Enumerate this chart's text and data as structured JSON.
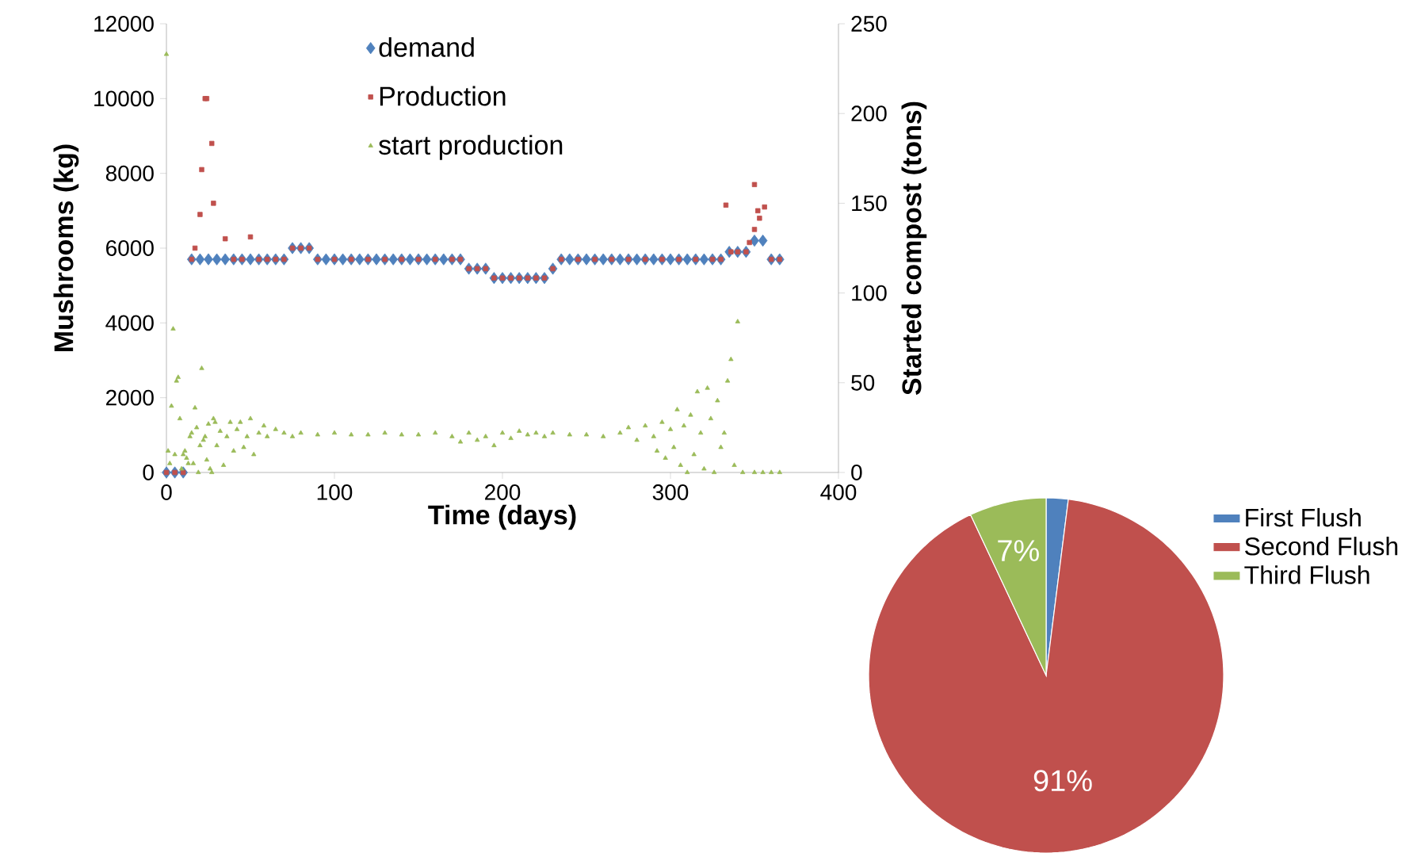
{
  "chart_data": [
    {
      "type": "scatter",
      "xlabel": "Time (days)",
      "ylabel": "Mushrooms (kg)",
      "y2label": "Started compost (tons)",
      "xlim": [
        0,
        400
      ],
      "xticks": [
        0,
        100,
        200,
        300,
        400
      ],
      "ylim": [
        0,
        12000
      ],
      "yticks": [
        0,
        2000,
        4000,
        6000,
        8000,
        10000,
        12000
      ],
      "y2lim": [
        0,
        250
      ],
      "y2ticks": [
        0,
        50,
        100,
        150,
        200,
        250
      ],
      "legend": "top",
      "grid": false,
      "series": [
        {
          "name": "demand",
          "color": "#4f81bd",
          "marker": "diamond",
          "x": [
            0,
            5,
            10,
            15,
            20,
            25,
            30,
            35,
            40,
            45,
            50,
            55,
            60,
            65,
            70,
            75,
            80,
            85,
            90,
            95,
            100,
            105,
            110,
            115,
            120,
            125,
            130,
            135,
            140,
            145,
            150,
            155,
            160,
            165,
            170,
            175,
            180,
            185,
            190,
            195,
            200,
            205,
            210,
            215,
            220,
            225,
            230,
            235,
            240,
            245,
            250,
            255,
            260,
            265,
            270,
            275,
            280,
            285,
            290,
            295,
            300,
            305,
            310,
            315,
            320,
            325,
            330,
            335,
            340,
            345,
            350,
            355,
            360,
            365
          ],
          "values": [
            0,
            0,
            0,
            5700,
            5700,
            5700,
            5700,
            5700,
            5700,
            5700,
            5700,
            5700,
            5700,
            5700,
            5700,
            6000,
            6000,
            6000,
            5700,
            5700,
            5700,
            5700,
            5700,
            5700,
            5700,
            5700,
            5700,
            5700,
            5700,
            5700,
            5700,
            5700,
            5700,
            5700,
            5700,
            5700,
            5450,
            5450,
            5450,
            5200,
            5200,
            5200,
            5200,
            5200,
            5200,
            5200,
            5450,
            5700,
            5700,
            5700,
            5700,
            5700,
            5700,
            5700,
            5700,
            5700,
            5700,
            5700,
            5700,
            5700,
            5700,
            5700,
            5700,
            5700,
            5700,
            5700,
            5700,
            5900,
            5900,
            5900,
            6200,
            6200,
            5700,
            5700
          ]
        },
        {
          "name": "Production",
          "color": "#c0504d",
          "marker": "square",
          "x": [
            0,
            5,
            10,
            15,
            17,
            20,
            21,
            23,
            24,
            27,
            28,
            35,
            40,
            45,
            50,
            55,
            60,
            65,
            70,
            75,
            80,
            85,
            90,
            100,
            110,
            120,
            130,
            140,
            150,
            160,
            170,
            175,
            180,
            185,
            190,
            195,
            200,
            205,
            210,
            215,
            220,
            225,
            230,
            235,
            245,
            255,
            265,
            275,
            285,
            295,
            305,
            315,
            325,
            330,
            333,
            336,
            340,
            345,
            347,
            350,
            350,
            352,
            353,
            356,
            360,
            365
          ],
          "values": [
            0,
            0,
            0,
            5700,
            6000,
            6900,
            8100,
            10000,
            10000,
            8800,
            7200,
            6250,
            5700,
            5700,
            6300,
            5700,
            5700,
            5700,
            5700,
            6000,
            6000,
            6000,
            5700,
            5700,
            5700,
            5700,
            5700,
            5700,
            5700,
            5700,
            5700,
            5700,
            5450,
            5450,
            5450,
            5200,
            5200,
            5200,
            5200,
            5200,
            5200,
            5200,
            5450,
            5700,
            5700,
            5700,
            5700,
            5700,
            5700,
            5700,
            5700,
            5700,
            5700,
            5700,
            7150,
            5900,
            5900,
            5900,
            6150,
            7700,
            6500,
            7000,
            6800,
            7100,
            5700,
            5700
          ]
        },
        {
          "name": "start production",
          "color": "#9bbb59",
          "marker": "triangle",
          "axis": "y2",
          "x": [
            0,
            1,
            2,
            3,
            4,
            5,
            6,
            7,
            8,
            9,
            10,
            11,
            12,
            13,
            14,
            15,
            16,
            17,
            18,
            19,
            20,
            21,
            22,
            23,
            24,
            25,
            26,
            27,
            28,
            29,
            30,
            32,
            34,
            36,
            38,
            40,
            42,
            44,
            46,
            48,
            50,
            52,
            55,
            58,
            60,
            65,
            70,
            75,
            80,
            90,
            100,
            110,
            120,
            130,
            140,
            150,
            160,
            170,
            175,
            180,
            185,
            190,
            195,
            200,
            205,
            210,
            215,
            220,
            225,
            230,
            240,
            250,
            260,
            270,
            275,
            280,
            285,
            290,
            292,
            295,
            297,
            300,
            302,
            304,
            306,
            308,
            310,
            312,
            314,
            316,
            318,
            320,
            322,
            324,
            326,
            328,
            330,
            332,
            334,
            336,
            338,
            340,
            343,
            350,
            355,
            360,
            365
          ],
          "values": [
            233,
            12,
            5,
            37,
            80,
            10,
            51,
            53,
            30,
            2,
            10,
            12,
            8,
            5,
            20,
            22,
            5,
            36,
            25,
            0,
            15,
            58,
            18,
            20,
            7,
            27,
            2,
            0,
            30,
            28,
            15,
            23,
            4,
            20,
            28,
            12,
            24,
            28,
            14,
            20,
            30,
            10,
            22,
            26,
            20,
            24,
            22,
            20,
            22,
            21,
            22,
            21,
            21,
            22,
            21,
            21,
            22,
            20,
            17,
            22,
            18,
            20,
            15,
            22,
            19,
            23,
            21,
            22,
            20,
            22,
            21,
            21,
            20,
            22,
            25,
            18,
            26,
            20,
            12,
            28,
            8,
            24,
            14,
            35,
            4,
            26,
            0,
            32,
            10,
            45,
            22,
            2,
            47,
            30,
            0,
            40,
            14,
            22,
            51,
            63,
            4,
            84,
            0,
            0,
            0,
            0,
            0
          ]
        }
      ]
    },
    {
      "type": "pie",
      "categories": [
        "First Flush",
        "Second Flush",
        "Third Flush"
      ],
      "values": [
        2,
        91,
        7
      ],
      "colors": [
        "#4f81bd",
        "#c0504d",
        "#9bbb59"
      ],
      "value_labels": [
        null,
        "91%",
        "7%"
      ],
      "legend": "right"
    }
  ]
}
